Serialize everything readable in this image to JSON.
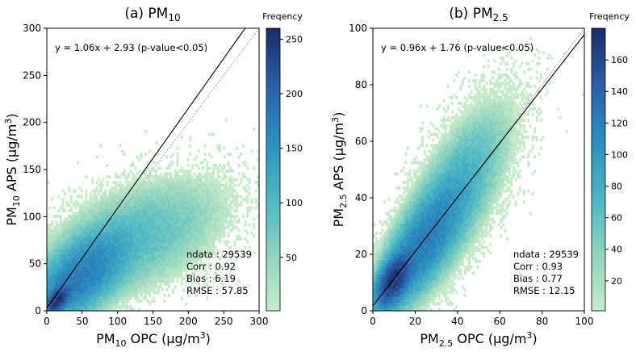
{
  "chart_data": [
    {
      "type": "heatmap",
      "panel_title_prefix": "(a) PM",
      "panel_title_sub": "10",
      "xlabel_prefix": "PM",
      "xlabel_sub": "10",
      "xlabel_suffix": " OPC (μg/m",
      "xlabel_sup": "3",
      "xlabel_close": ")",
      "ylabel_prefix": "PM",
      "ylabel_sub": "10",
      "ylabel_suffix": " APS (μg/m",
      "ylabel_sup": "3",
      "ylabel_close": ")",
      "xlim": [
        0,
        300
      ],
      "ylim": [
        0,
        300
      ],
      "xticks": [
        0,
        50,
        100,
        150,
        200,
        250,
        300
      ],
      "yticks": [
        0,
        50,
        100,
        150,
        200,
        250,
        300
      ],
      "regression": {
        "slope": 1.06,
        "intercept": 2.93,
        "text": "y = 1.06x + 2.93 (p-value<0.05)"
      },
      "one_to_one_line": true,
      "stats": [
        "ndata : 29539",
        "Corr : 0.92",
        "Bias : 6.19",
        "RMSE : 57.85"
      ],
      "colorbar": {
        "title": "Freqency",
        "min": 1,
        "max": 260,
        "ticks": [
          50,
          100,
          150,
          200,
          250
        ]
      },
      "density_model": {
        "max_freq": 260,
        "x_spread": 300,
        "components": [
          {
            "cx": 15,
            "cy": 12,
            "sx": 9,
            "sy": 8,
            "rho": 0.6,
            "w": 1.0
          },
          {
            "cx": 45,
            "cy": 35,
            "sx": 35,
            "sy": 25,
            "rho": 0.6,
            "w": 0.18
          },
          {
            "cx": 120,
            "cy": 75,
            "sx": 70,
            "sy": 35,
            "rho": 0.5,
            "w": 0.03
          }
        ]
      }
    },
    {
      "type": "heatmap",
      "panel_title_prefix": "(b) PM",
      "panel_title_sub": "2.5",
      "xlabel_prefix": "PM",
      "xlabel_sub": "2.5",
      "xlabel_suffix": " OPC (μg/m",
      "xlabel_sup": "3",
      "xlabel_close": ")",
      "ylabel_prefix": "PM",
      "ylabel_sub": "2.5",
      "ylabel_suffix": " APS (μg/m",
      "ylabel_sup": "3",
      "ylabel_close": ")",
      "xlim": [
        0,
        100
      ],
      "ylim": [
        0,
        100
      ],
      "xticks": [
        0,
        20,
        40,
        60,
        80,
        100
      ],
      "yticks": [
        0,
        20,
        40,
        60,
        80,
        100
      ],
      "regression": {
        "slope": 0.96,
        "intercept": 1.76,
        "text": "y = 0.96x + 1.76 (p-value<0.05)"
      },
      "one_to_one_line": true,
      "stats": [
        "ndata : 29539",
        "Corr : 0.93",
        "Bias : 0.77",
        "RMSE : 12.15"
      ],
      "colorbar": {
        "title": "Freqency",
        "min": 1,
        "max": 180,
        "ticks": [
          20,
          40,
          60,
          80,
          100,
          120,
          140,
          160
        ]
      },
      "density_model": {
        "max_freq": 175,
        "x_spread": 100,
        "components": [
          {
            "cx": 10,
            "cy": 11,
            "sx": 4,
            "sy": 4.5,
            "rho": 0.55,
            "w": 1.0
          },
          {
            "cx": 22,
            "cy": 22,
            "sx": 11,
            "sy": 12,
            "rho": 0.75,
            "w": 0.2
          },
          {
            "cx": 38,
            "cy": 40,
            "sx": 14,
            "sy": 17,
            "rho": 0.7,
            "w": 0.06
          }
        ]
      }
    }
  ]
}
